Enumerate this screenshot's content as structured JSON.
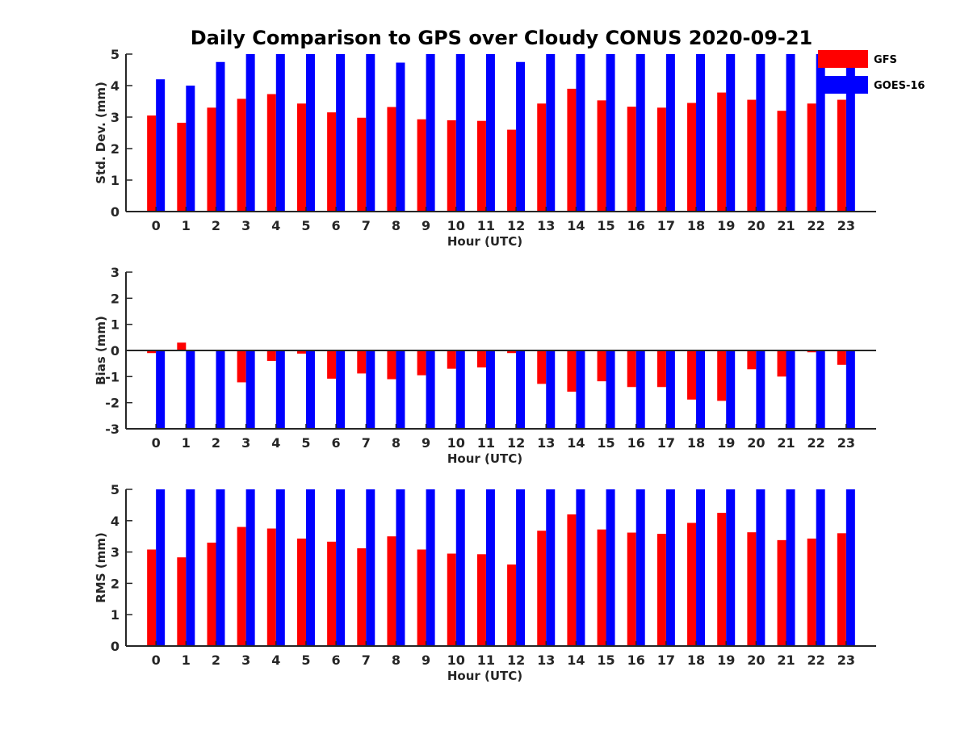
{
  "chart_data": {
    "title": "Daily Comparison to GPS over Cloudy CONUS 2020-09-21",
    "legend": {
      "placement": "top-right",
      "entries": [
        {
          "name": "GFS",
          "color": "#ff0000"
        },
        {
          "name": "GOES-16",
          "color": "#0000ff"
        }
      ]
    },
    "categories": [
      "0",
      "1",
      "2",
      "3",
      "4",
      "5",
      "6",
      "7",
      "8",
      "9",
      "10",
      "11",
      "12",
      "13",
      "14",
      "15",
      "16",
      "17",
      "18",
      "19",
      "20",
      "21",
      "22",
      "23"
    ],
    "panels": [
      {
        "type": "bar",
        "xlabel": "Hour (UTC)",
        "ylabel": "Std. Dev. (mm)",
        "ylim": [
          0,
          5
        ],
        "yticks": [
          "0",
          "1",
          "2",
          "3",
          "4",
          "5"
        ],
        "series": [
          {
            "name": "GFS",
            "color": "#ff0000",
            "values": [
              3.05,
              2.82,
              3.3,
              3.58,
              3.73,
              3.43,
              3.15,
              2.98,
              3.32,
              2.93,
              2.9,
              2.88,
              2.6,
              3.43,
              3.9,
              3.53,
              3.33,
              3.3,
              3.45,
              3.78,
              3.55,
              3.2,
              3.43,
              3.55
            ]
          },
          {
            "name": "GOES-16",
            "color": "#0000ff",
            "values": [
              4.2,
              4.0,
              4.75,
              5.0,
              5.0,
              5.0,
              5.0,
              5.0,
              4.73,
              5.0,
              5.0,
              5.0,
              4.75,
              5.0,
              5.0,
              5.0,
              5.0,
              5.0,
              5.0,
              5.0,
              5.0,
              5.0,
              5.0,
              5.0
            ]
          }
        ]
      },
      {
        "type": "bar",
        "xlabel": "Hour (UTC)",
        "ylabel": "Bias (mm)",
        "ylim": [
          -3,
          3
        ],
        "yticks": [
          "-3",
          "-2",
          "-1",
          "0",
          "1",
          "2",
          "3"
        ],
        "series": [
          {
            "name": "GFS",
            "color": "#ff0000",
            "values": [
              -0.1,
              0.3,
              0.02,
              -1.22,
              -0.4,
              -0.12,
              -1.08,
              -0.88,
              -1.1,
              -0.95,
              -0.7,
              -0.65,
              -0.1,
              -1.28,
              -1.58,
              -1.18,
              -1.4,
              -1.4,
              -1.88,
              -1.93,
              -0.72,
              -1.0,
              -0.07,
              -0.55
            ]
          },
          {
            "name": "GOES-16",
            "color": "#0000ff",
            "values": [
              -3,
              -3,
              -3,
              -3,
              -3,
              -3,
              -3,
              -3,
              -3,
              -3,
              -3,
              -3,
              -3,
              -3,
              -3,
              -3,
              -3,
              -3,
              -3,
              -3,
              -3,
              -3,
              -3,
              -3
            ]
          }
        ]
      },
      {
        "type": "bar",
        "xlabel": "Hour (UTC)",
        "ylabel": "RMS (mm)",
        "ylim": [
          0,
          5
        ],
        "yticks": [
          "0",
          "1",
          "2",
          "3",
          "4",
          "5"
        ],
        "series": [
          {
            "name": "GFS",
            "color": "#ff0000",
            "values": [
              3.08,
              2.83,
              3.3,
              3.8,
              3.75,
              3.43,
              3.33,
              3.12,
              3.5,
              3.08,
              2.95,
              2.93,
              2.6,
              3.68,
              4.2,
              3.72,
              3.62,
              3.58,
              3.93,
              4.25,
              3.63,
              3.38,
              3.43,
              3.6
            ]
          },
          {
            "name": "GOES-16",
            "color": "#0000ff",
            "values": [
              5,
              5,
              5,
              5,
              5,
              5,
              5,
              5,
              5,
              5,
              5,
              5,
              5,
              5,
              5,
              5,
              5,
              5,
              5,
              5,
              5,
              5,
              5,
              5
            ]
          }
        ]
      }
    ]
  }
}
